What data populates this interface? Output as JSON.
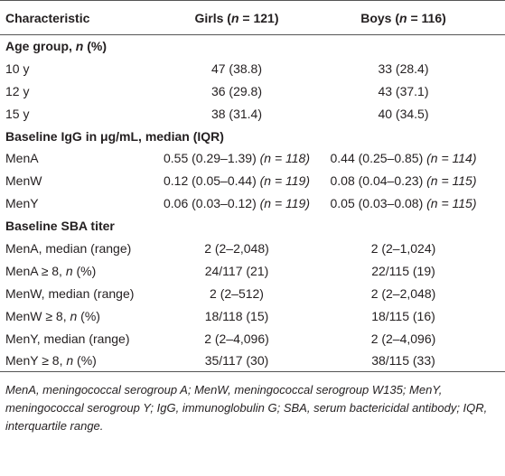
{
  "table": {
    "header": [
      [
        {
          "text": "Characteristic"
        }
      ],
      [
        {
          "text": "Girls ("
        },
        {
          "text": "n",
          "italic": true
        },
        {
          "text": " = 121)"
        }
      ],
      [
        {
          "text": "Boys ("
        },
        {
          "text": "n",
          "italic": true
        },
        {
          "text": " = 116)"
        }
      ]
    ],
    "rows": [
      {
        "bold": true,
        "cells": [
          [
            {
              "text": "Age group, "
            },
            {
              "text": "n",
              "italic": true
            },
            {
              "text": " (%)"
            }
          ]
        ]
      },
      {
        "cells": [
          [
            {
              "text": "10 y"
            }
          ],
          [
            {
              "text": "47 (38.8)"
            }
          ],
          [
            {
              "text": "33 (28.4)"
            }
          ]
        ]
      },
      {
        "cells": [
          [
            {
              "text": "12 y"
            }
          ],
          [
            {
              "text": "36 (29.8)"
            }
          ],
          [
            {
              "text": "43 (37.1)"
            }
          ]
        ]
      },
      {
        "cells": [
          [
            {
              "text": "15 y"
            }
          ],
          [
            {
              "text": "38 (31.4)"
            }
          ],
          [
            {
              "text": "40 (34.5)"
            }
          ]
        ]
      },
      {
        "bold": true,
        "cells": [
          [
            {
              "text": "Baseline IgG in μg/mL, median (IQR)"
            }
          ]
        ]
      },
      {
        "cells": [
          [
            {
              "text": "MenA"
            }
          ],
          [
            {
              "text": "0.55 (0.29–1.39) "
            },
            {
              "text": "(n = 118)",
              "italic": true
            }
          ],
          [
            {
              "text": "0.44 (0.25–0.85) "
            },
            {
              "text": "(n = 114)",
              "italic": true
            }
          ]
        ]
      },
      {
        "cells": [
          [
            {
              "text": "MenW"
            }
          ],
          [
            {
              "text": "0.12 (0.05–0.44) "
            },
            {
              "text": "(n = 119)",
              "italic": true
            }
          ],
          [
            {
              "text": "0.08 (0.04–0.23) "
            },
            {
              "text": "(n = 115)",
              "italic": true
            }
          ]
        ]
      },
      {
        "cells": [
          [
            {
              "text": "MenY"
            }
          ],
          [
            {
              "text": "0.06 (0.03–0.12) "
            },
            {
              "text": "(n = 119)",
              "italic": true
            }
          ],
          [
            {
              "text": "0.05 (0.03–0.08) "
            },
            {
              "text": "(n = 115)",
              "italic": true
            }
          ]
        ]
      },
      {
        "bold": true,
        "cells": [
          [
            {
              "text": "Baseline SBA titer"
            }
          ]
        ]
      },
      {
        "cells": [
          [
            {
              "text": "MenA, median (range)"
            }
          ],
          [
            {
              "text": "2 (2–2,048)"
            }
          ],
          [
            {
              "text": "2 (2–1,024)"
            }
          ]
        ]
      },
      {
        "cells": [
          [
            {
              "text": "MenA ≥ 8, "
            },
            {
              "text": "n",
              "italic": true
            },
            {
              "text": " (%)"
            }
          ],
          [
            {
              "text": "24/117 (21)"
            }
          ],
          [
            {
              "text": "22/115 (19)"
            }
          ]
        ]
      },
      {
        "cells": [
          [
            {
              "text": "MenW, median (range)"
            }
          ],
          [
            {
              "text": "2 (2–512)"
            }
          ],
          [
            {
              "text": "2 (2–2,048)"
            }
          ]
        ]
      },
      {
        "cells": [
          [
            {
              "text": "MenW ≥ 8, "
            },
            {
              "text": "n",
              "italic": true
            },
            {
              "text": " (%)"
            }
          ],
          [
            {
              "text": "18/118 (15)"
            }
          ],
          [
            {
              "text": "18/115 (16)"
            }
          ]
        ]
      },
      {
        "cells": [
          [
            {
              "text": "MenY, median (range)"
            }
          ],
          [
            {
              "text": "2 (2–4,096)"
            }
          ],
          [
            {
              "text": "2 (2–4,096)"
            }
          ]
        ]
      },
      {
        "cells": [
          [
            {
              "text": "MenY ≥ 8, "
            },
            {
              "text": "n",
              "italic": true
            },
            {
              "text": " (%)"
            }
          ],
          [
            {
              "text": "35/117 (30)"
            }
          ],
          [
            {
              "text": "38/115 (33)"
            }
          ]
        ]
      }
    ]
  },
  "footnote": "MenA, meningococcal serogroup A; MenW, meningococcal serogroup W135; MenY, meningococcal serogroup Y; IgG, immunoglobulin G; SBA, serum bactericidal antibody; IQR, interquartile range."
}
